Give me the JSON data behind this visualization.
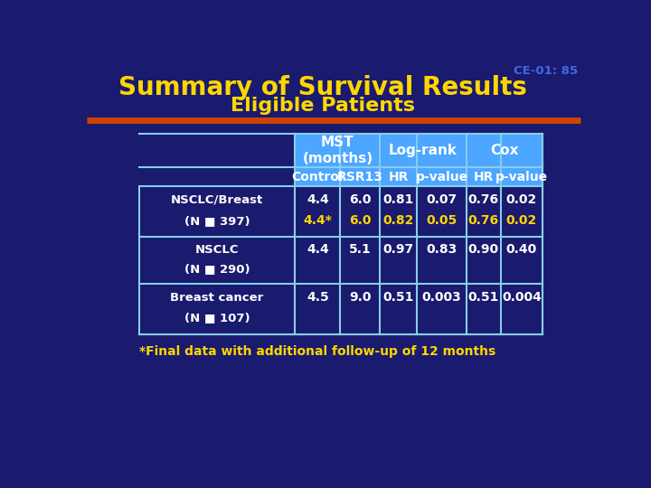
{
  "title_line1": "Summary of Survival Results",
  "title_line2": "Eligible Patients",
  "slide_id": "CE-01: 85",
  "bg_color": "#1a1a6e",
  "title_color": "#ffd700",
  "slide_id_color": "#4169e1",
  "orange_line_color": "#cc4400",
  "table_header_bg": "#4da6ff",
  "table_border_color": "#87ceeb",
  "highlight_text_color": "#ffd700",
  "footnote_color": "#ffd700",
  "footnote": "*Final data with additional follow-up of 12 months",
  "col_headers_row2": [
    "Control",
    "RSR13",
    "HR",
    "p-value",
    "HR",
    "p-value"
  ],
  "row_labels": [
    [
      "NSCLC/Breast",
      "(N ■ 397)"
    ],
    [
      "NSCLC",
      "(N ■ 290)"
    ],
    [
      "Breast cancer",
      "(N ■ 107)"
    ]
  ],
  "rows": [
    [
      [
        "4.4",
        "4.4*"
      ],
      [
        "6.0",
        "6.0"
      ],
      [
        "0.81",
        "0.82"
      ],
      [
        "0.07",
        "0.05"
      ],
      [
        "0.76",
        "0.76"
      ],
      [
        "0.02",
        "0.02"
      ]
    ],
    [
      [
        "4.4"
      ],
      [
        "5.1"
      ],
      [
        "0.97"
      ],
      [
        "0.83"
      ],
      [
        "0.90"
      ],
      [
        "0.40"
      ]
    ],
    [
      [
        "4.5"
      ],
      [
        "9.0"
      ],
      [
        "0.51"
      ],
      [
        "0.003"
      ],
      [
        "0.51"
      ],
      [
        "0.004"
      ]
    ]
  ],
  "row_highlight": [
    true,
    false,
    false
  ]
}
